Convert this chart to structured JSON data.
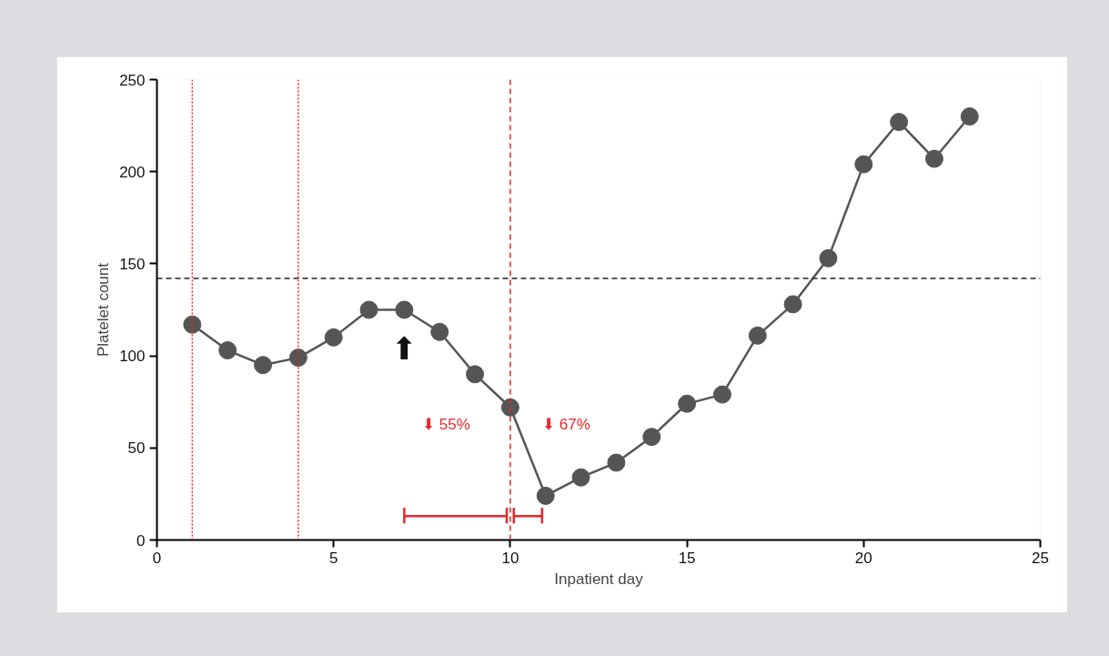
{
  "chart_data": {
    "type": "line",
    "xlabel": "Inpatient day",
    "ylabel": "Platelet count",
    "x": [
      1,
      2,
      3,
      4,
      5,
      6,
      7,
      8,
      9,
      10,
      11,
      12,
      13,
      14,
      15,
      16,
      17,
      18,
      19,
      20,
      21,
      22,
      23
    ],
    "series": [
      {
        "color": "#555555",
        "marker": "circle",
        "values": [
          117,
          103,
          95,
          99,
          110,
          125,
          125,
          113,
          90,
          72,
          24,
          34,
          42,
          56,
          74,
          79,
          111,
          128,
          153,
          204,
          227,
          207,
          230
        ]
      },
      {
        "type": "line",
        "color": "#e8262b",
        "marker": "none",
        "x": [
          7,
          7,
          7,
          9.9,
          9.9,
          9.9
        ],
        "values": [
          9,
          17,
          13,
          13,
          17,
          9
        ]
      },
      {
        "type": "line",
        "color": "#e8262b",
        "marker": "none",
        "x": [
          10.1,
          10.1,
          10.1,
          10.9,
          10.9,
          10.9
        ],
        "values": [
          9,
          17,
          13,
          13,
          17,
          9
        ]
      }
    ],
    "xlim": [
      0,
      25
    ],
    "ylim": [
      0,
      250
    ],
    "xticks": [
      0,
      5,
      10,
      15,
      20,
      25
    ],
    "yticks": [
      0,
      50,
      100,
      150,
      200,
      250
    ],
    "grid": false,
    "line_style": "solid",
    "ref_lines": [
      {
        "axis": "y",
        "value": 142,
        "color": "#222222",
        "line_style": "dashed"
      },
      {
        "axis": "x",
        "value": 1,
        "color": "#e8262b",
        "line_style": "dotted"
      },
      {
        "axis": "x",
        "value": 4,
        "color": "#e8262b",
        "line_style": "dotted"
      },
      {
        "axis": "x",
        "value": 10,
        "color": "#e8262b",
        "line_style": "dashed"
      }
    ],
    "annotations": [
      "⬇ 55%",
      "⬇ 67%",
      {
        "text": "⬆",
        "x": 7,
        "y": 125
      }
    ]
  }
}
